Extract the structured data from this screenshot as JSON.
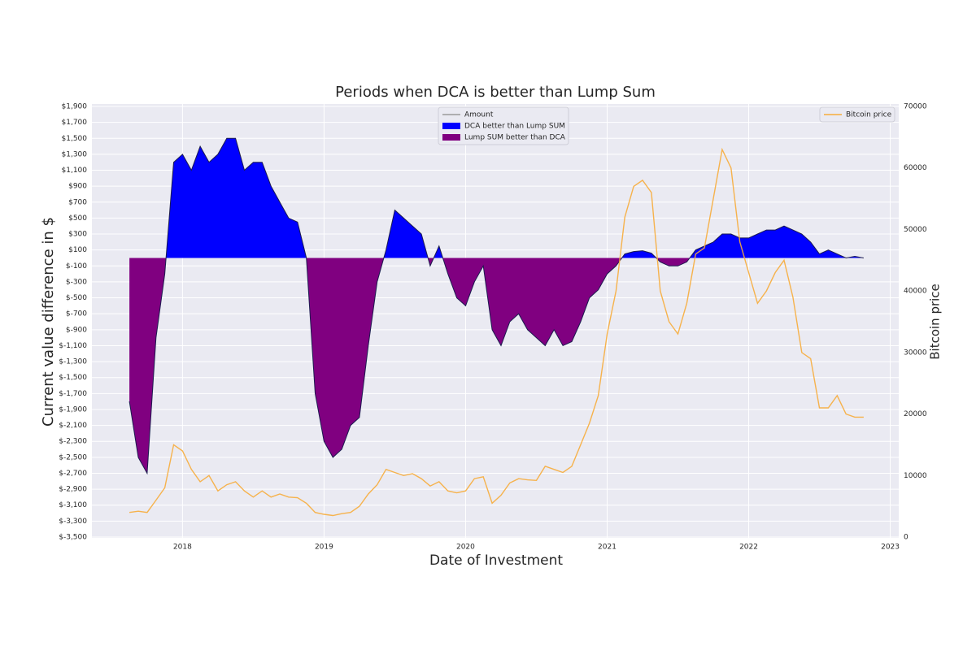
{
  "chart_data": {
    "type": "area-line",
    "title": "Periods when DCA is better than Lump Sum",
    "xlabel": "Date of Investment",
    "ylabel": "Current value difference in $",
    "y2label": "Bitcoin price",
    "x": [
      2017.625,
      2017.6875,
      2017.75,
      2017.8125,
      2017.875,
      2017.9375,
      2018,
      2018.0625,
      2018.125,
      2018.1875,
      2018.25,
      2018.3125,
      2018.375,
      2018.4375,
      2018.5,
      2018.5625,
      2018.625,
      2018.6875,
      2018.75,
      2018.8125,
      2018.875,
      2018.9375,
      2019,
      2019.0625,
      2019.125,
      2019.1875,
      2019.25,
      2019.3125,
      2019.375,
      2019.4375,
      2019.5,
      2019.5625,
      2019.625,
      2019.6875,
      2019.75,
      2019.8125,
      2019.875,
      2019.9375,
      2020,
      2020.0625,
      2020.125,
      2020.1875,
      2020.25,
      2020.3125,
      2020.375,
      2020.4375,
      2020.5,
      2020.5625,
      2020.625,
      2020.6875,
      2020.75,
      2020.8125,
      2020.875,
      2020.9375,
      2021,
      2021.0625,
      2021.125,
      2021.1875,
      2021.25,
      2021.3125,
      2021.375,
      2021.4375,
      2021.5,
      2021.5625,
      2021.625,
      2021.6875,
      2021.75,
      2021.8125,
      2021.875,
      2021.9375,
      2022,
      2022.0625,
      2022.125,
      2022.1875,
      2022.25,
      2022.3125,
      2022.375,
      2022.4375,
      2022.5,
      2022.5625,
      2022.625,
      2022.6875,
      2022.75,
      2022.8125
    ],
    "series": [
      {
        "name": "Amount",
        "color": "#9a9a9a",
        "line_color": "#1c1c50",
        "axis": "y",
        "values": [
          -1800,
          -2500,
          -2700,
          -1000,
          -200,
          1200,
          1300,
          1100,
          1400,
          1200,
          1300,
          1500,
          1500,
          1100,
          1200,
          1200,
          900,
          700,
          500,
          450,
          0,
          -1700,
          -2300,
          -2500,
          -2400,
          -2100,
          -2000,
          -1100,
          -300,
          100,
          600,
          500,
          400,
          300,
          -100,
          150,
          -200,
          -500,
          -600,
          -300,
          -100,
          -900,
          -1100,
          -800,
          -700,
          -900,
          -1000,
          -1100,
          -900,
          -1100,
          -1050,
          -800,
          -500,
          -400,
          -200,
          -100,
          50,
          80,
          90,
          60,
          -50,
          -100,
          -100,
          -50,
          100,
          150,
          200,
          300,
          300,
          250,
          250,
          300,
          350,
          350,
          400,
          350,
          300,
          200,
          50,
          100,
          50,
          0,
          20,
          0
        ]
      },
      {
        "name": "Bitcoin price",
        "color": "#f7ac3a",
        "axis": "y2",
        "values": [
          4000,
          4200,
          4000,
          6000,
          8000,
          15000,
          14000,
          11000,
          9000,
          10000,
          7500,
          8500,
          9000,
          7500,
          6500,
          7500,
          6500,
          7000,
          6500,
          6400,
          5500,
          4000,
          3700,
          3500,
          3800,
          4000,
          5000,
          7000,
          8500,
          11000,
          10500,
          10000,
          10300,
          9500,
          8300,
          9000,
          7500,
          7200,
          7500,
          9500,
          9800,
          5500,
          6800,
          8800,
          9500,
          9300,
          9200,
          11500,
          11000,
          10500,
          11500,
          15000,
          18500,
          23000,
          33000,
          40000,
          52000,
          57000,
          58000,
          56000,
          40000,
          35000,
          33000,
          38000,
          46000,
          47000,
          55000,
          63000,
          60000,
          48000,
          43000,
          38000,
          40000,
          43000,
          45000,
          39000,
          30000,
          29000,
          21000,
          21000,
          23000,
          20000,
          19500,
          19500
        ]
      }
    ],
    "fills": [
      {
        "name": "DCA better than Lump SUM",
        "color": "#0000ff",
        "where": "above"
      },
      {
        "name": "Lump SUM better than DCA",
        "color": "#800080",
        "where": "below"
      }
    ],
    "xlim": [
      2017.36,
      2023.06
    ],
    "xticks": [
      2018,
      2019,
      2020,
      2021,
      2022,
      2023
    ],
    "ylim": [
      -3500,
      1900
    ],
    "yticks": [
      {
        "value": 1900,
        "label": "$1,900"
      },
      {
        "value": 1700,
        "label": "$1,700"
      },
      {
        "value": 1500,
        "label": "$1,500"
      },
      {
        "value": 1300,
        "label": "$1,300"
      },
      {
        "value": 1100,
        "label": "$1,100"
      },
      {
        "value": 900,
        "label": "$900"
      },
      {
        "value": 700,
        "label": "$700"
      },
      {
        "value": 500,
        "label": "$500"
      },
      {
        "value": 300,
        "label": "$300"
      },
      {
        "value": 100,
        "label": "$100"
      },
      {
        "value": -100,
        "label": "$-100"
      },
      {
        "value": -300,
        "label": "$-300"
      },
      {
        "value": -500,
        "label": "$-500"
      },
      {
        "value": -700,
        "label": "$-700"
      },
      {
        "value": -900,
        "label": "$-900"
      },
      {
        "value": -1100,
        "label": "$-1,100"
      },
      {
        "value": -1300,
        "label": "$-1,300"
      },
      {
        "value": -1500,
        "label": "$-1,500"
      },
      {
        "value": -1700,
        "label": "$-1,700"
      },
      {
        "value": -1900,
        "label": "$-1,900"
      },
      {
        "value": -2100,
        "label": "$-2,100"
      },
      {
        "value": -2300,
        "label": "$-2,300"
      },
      {
        "value": -2500,
        "label": "$-2,500"
      },
      {
        "value": -2700,
        "label": "$-2,700"
      },
      {
        "value": -2900,
        "label": "$-2,900"
      },
      {
        "value": -3100,
        "label": "$-3,100"
      },
      {
        "value": -3300,
        "label": "$-3,300"
      },
      {
        "value": -3500,
        "label": "$-3,500"
      }
    ],
    "y2lim": [
      0,
      70000
    ],
    "y2ticks": [
      0,
      10000,
      20000,
      30000,
      40000,
      50000,
      60000,
      70000
    ],
    "grid": true,
    "legend": "upper center",
    "legend2": "upper right"
  }
}
